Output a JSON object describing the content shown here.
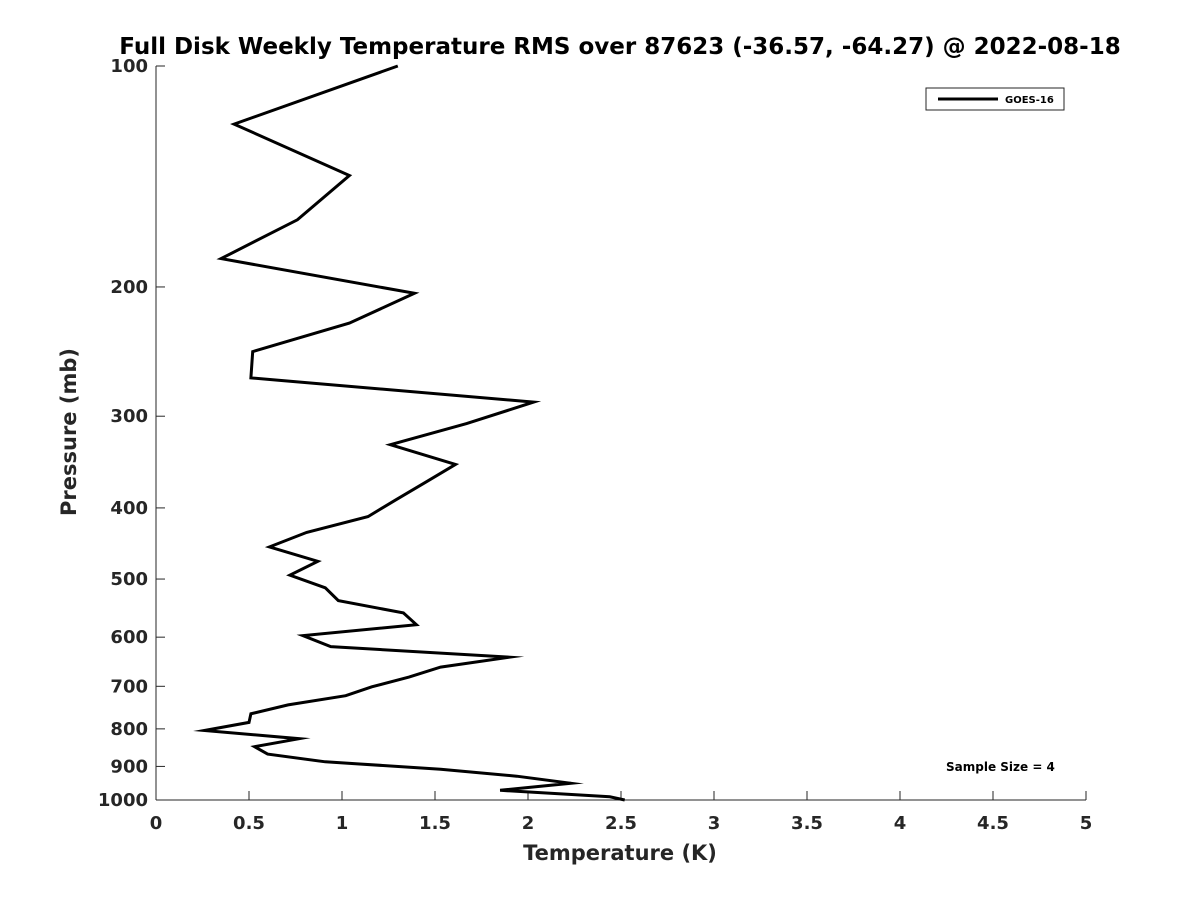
{
  "chart_data": {
    "type": "line",
    "title": "Full Disk Weekly Temperature RMS over 87623 (-36.57, -64.27) @ 2022-08-18",
    "xlabel": "Temperature (K)",
    "ylabel": "Pressure (mb)",
    "xlim": [
      0,
      5
    ],
    "ylim": [
      100,
      1000
    ],
    "yscale": "log",
    "y_reversed": true,
    "xticks": [
      0,
      0.5,
      1,
      1.5,
      2,
      2.5,
      3,
      3.5,
      4,
      4.5,
      5
    ],
    "xtick_labels": [
      "0",
      "0.5",
      "1",
      "1.5",
      "2",
      "2.5",
      "3",
      "3.5",
      "4",
      "4.5",
      "5"
    ],
    "yticks": [
      100,
      200,
      300,
      400,
      500,
      600,
      700,
      800,
      900,
      1000
    ],
    "ytick_labels": [
      "100",
      "200",
      "300",
      "400",
      "500",
      "600",
      "700",
      "800",
      "900",
      "1000"
    ],
    "grid": false,
    "legend_position": "top-right",
    "series": [
      {
        "name": "GOES-16",
        "color": "#000000",
        "points": [
          [
            1.3,
            100
          ],
          [
            0.42,
            120
          ],
          [
            1.04,
            141
          ],
          [
            0.76,
            162
          ],
          [
            0.35,
            183
          ],
          [
            1.39,
            204
          ],
          [
            1.04,
            224
          ],
          [
            0.52,
            245
          ],
          [
            0.51,
            266
          ],
          [
            2.03,
            287
          ],
          [
            1.67,
            307
          ],
          [
            1.26,
            328
          ],
          [
            1.61,
            349
          ],
          [
            1.45,
            369
          ],
          [
            1.29,
            390
          ],
          [
            1.14,
            411
          ],
          [
            0.81,
            432
          ],
          [
            0.61,
            452
          ],
          [
            0.87,
            473
          ],
          [
            0.72,
            494
          ],
          [
            0.91,
            514
          ],
          [
            0.98,
            535
          ],
          [
            1.33,
            556
          ],
          [
            1.4,
            577
          ],
          [
            0.79,
            597
          ],
          [
            0.94,
            618
          ],
          [
            1.9,
            639
          ],
          [
            1.53,
            659
          ],
          [
            1.36,
            680
          ],
          [
            1.16,
            701
          ],
          [
            1.02,
            721
          ],
          [
            0.71,
            742
          ],
          [
            0.51,
            763
          ],
          [
            0.5,
            784
          ],
          [
            0.26,
            804
          ],
          [
            0.77,
            825
          ],
          [
            0.53,
            846
          ],
          [
            0.6,
            866
          ],
          [
            0.91,
            887
          ],
          [
            1.53,
            908
          ],
          [
            1.94,
            928
          ],
          [
            2.23,
            949
          ],
          [
            1.85,
            970
          ],
          [
            2.44,
            990
          ],
          [
            2.52,
            1000
          ]
        ]
      }
    ],
    "annotation": "Sample Size = 4"
  }
}
